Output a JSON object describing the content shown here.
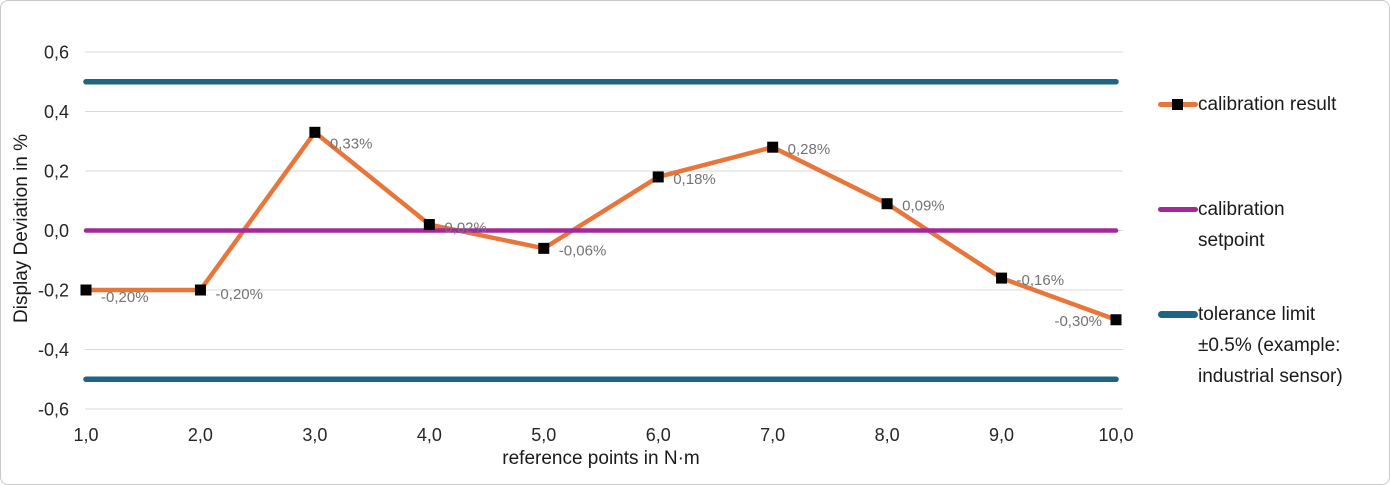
{
  "figure": {
    "background": "#FFFFFF",
    "border_color": "#C9C9C9"
  },
  "chart_data": {
    "type": "line",
    "xlabel": "reference points in N·m",
    "ylabel": "Display Deviation in %",
    "x": [
      1,
      2,
      3,
      4,
      5,
      6,
      7,
      8,
      9,
      10
    ],
    "x_tick_labels": [
      "1,0",
      "2,0",
      "3,0",
      "4,0",
      "5,0",
      "6,0",
      "7,0",
      "8,0",
      "9,0",
      "10,0"
    ],
    "y_ticks": [
      0.6,
      0.4,
      0.2,
      0.0,
      -0.2,
      -0.4,
      -0.6
    ],
    "y_tick_labels": [
      "0,6",
      "0,4",
      "0,2",
      "0,0",
      "-0,2",
      "-0,4",
      "-0,6"
    ],
    "ylim": [
      -0.6,
      0.6
    ],
    "grid": true,
    "legend_position": "right",
    "series": [
      {
        "name": "calibration result",
        "color": "#E8763B",
        "marker": "square",
        "marker_color": "#000000",
        "values": [
          -0.2,
          -0.2,
          0.33,
          0.02,
          -0.06,
          0.18,
          0.28,
          0.09,
          -0.16,
          -0.3
        ],
        "data_labels": [
          "-0,20%",
          "-0,20%",
          "0,33%",
          "0,02%",
          "-0,06%",
          "0,18%",
          "0,28%",
          "0,09%",
          "-0,16%",
          "-0,30%"
        ]
      },
      {
        "name": "calibration setpoint",
        "color": "#A3299B",
        "values": [
          0,
          0,
          0,
          0,
          0,
          0,
          0,
          0,
          0,
          0
        ]
      },
      {
        "name": "tolerance limit +0.5%",
        "color": "#1F6482",
        "values": [
          0.5,
          0.5,
          0.5,
          0.5,
          0.5,
          0.5,
          0.5,
          0.5,
          0.5,
          0.5
        ]
      },
      {
        "name": "tolerance limit -0.5%",
        "color": "#1F6482",
        "values": [
          -0.5,
          -0.5,
          -0.5,
          -0.5,
          -0.5,
          -0.5,
          -0.5,
          -0.5,
          -0.5,
          -0.5
        ]
      }
    ]
  },
  "legend": {
    "items": [
      {
        "label": "calibration result",
        "color": "#E8763B",
        "marker": "square"
      },
      {
        "label": "calibration setpoint",
        "color": "#A3299B"
      },
      {
        "label": "tolerance limit ±0.5% (example: industrial sensor)",
        "color": "#1F6482",
        "thick": true
      }
    ]
  },
  "styles": {
    "grid_color": "#D9D9D9",
    "tick_label_color": "#262626",
    "data_label_color": "#737373",
    "axis_title_color": "#1A1A1A",
    "legend_text_color": "#1A1A1A"
  }
}
